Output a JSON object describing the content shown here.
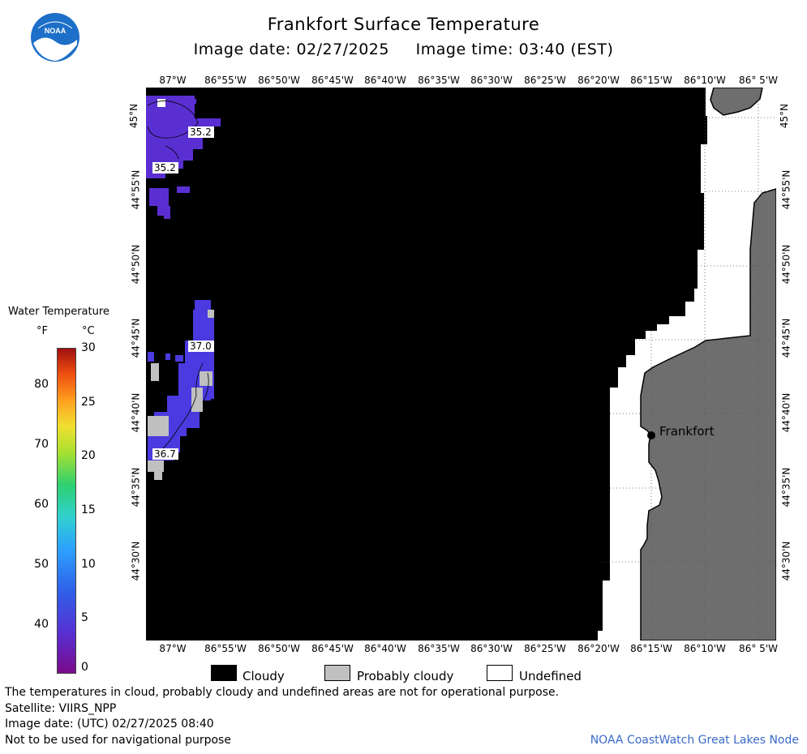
{
  "header": {
    "title": "Frankfort Surface Temperature",
    "image_date_line": "Image date: 02/27/2025     Image time: 03:40 (EST)",
    "logo_text": "NOAA"
  },
  "map": {
    "lon_labels": [
      "87°W",
      "86°55'W",
      "86°50'W",
      "86°45'W",
      "86°40'W",
      "86°35'W",
      "86°30'W",
      "86°25'W",
      "86°20'W",
      "86°15'W",
      "86°10'W",
      "86° 5'W"
    ],
    "lat_labels": [
      "45°N",
      "44°55'N",
      "44°50'N",
      "44°45'N",
      "44°40'N",
      "44°35'N",
      "44°30'N"
    ],
    "contour_labels": [
      "35.2",
      "35.2",
      "37.0",
      "36.7"
    ],
    "city_label": "Frankfort",
    "colors": {
      "cloudy": "#000000",
      "probably_cloudy": "#c0c0c0",
      "undefined": "#ffffff",
      "land": "#6e6e6e",
      "water_cold": "#5a2fd2"
    }
  },
  "legend": {
    "title": "Water Temperature",
    "unit_f": "°F",
    "unit_c": "°C",
    "f_ticks": [
      "80",
      "70",
      "60",
      "50",
      "40"
    ],
    "c_ticks": [
      "30",
      "25",
      "20",
      "15",
      "10",
      "5",
      "0"
    ],
    "range_f": [
      32,
      86
    ],
    "range_c": [
      0,
      30
    ]
  },
  "key": {
    "cloudy": "Cloudy",
    "probably_cloudy": "Probably cloudy",
    "undefined": "Undefined"
  },
  "footer": {
    "disclaimer": "The temperatures in cloud, probably cloudy and undefined areas are not for operational purpose.",
    "satellite": "Satellite: VIIRS_NPP",
    "utc_date": "Image date: (UTC) 02/27/2025  08:40",
    "nav_warning": "Not to be used for navigational purpose",
    "credit": "NOAA CoastWatch Great Lakes Node"
  }
}
